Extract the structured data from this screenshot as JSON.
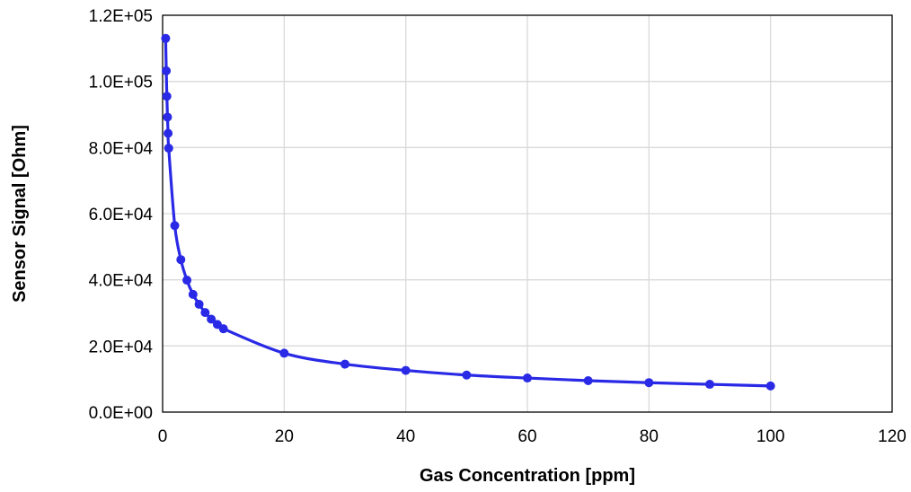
{
  "chart_data": {
    "type": "line",
    "title": "",
    "xlabel": "Gas Concentration [ppm]",
    "ylabel": "Sensor Signal [Ohm]",
    "xlim": [
      0,
      120
    ],
    "ylim": [
      0,
      120000
    ],
    "x_ticks": [
      0,
      20,
      40,
      60,
      80,
      100,
      120
    ],
    "x_tick_labels": [
      "0",
      "20",
      "40",
      "60",
      "80",
      "100",
      "120"
    ],
    "y_ticks": [
      0,
      20000,
      40000,
      60000,
      80000,
      100000,
      120000
    ],
    "y_tick_labels": [
      "0.0E+00",
      "2.0E+04",
      "4.0E+04",
      "6.0E+04",
      "8.0E+04",
      "1.0E+05",
      "1.2E+05"
    ],
    "grid": true,
    "legend": "none",
    "series": [
      {
        "color": "#2929e6",
        "marker": "circle",
        "smooth": true,
        "x": [
          0.5,
          0.6,
          0.7,
          0.8,
          0.9,
          1,
          2,
          3,
          4,
          5,
          6,
          7,
          8,
          9,
          10,
          20,
          30,
          40,
          50,
          60,
          70,
          80,
          90,
          100
        ],
        "y": [
          113000,
          103200,
          95500,
          89200,
          84300,
          79800,
          56400,
          46100,
          39900,
          35600,
          32600,
          30100,
          28100,
          26500,
          25200,
          17800,
          14500,
          12600,
          11200,
          10300,
          9500,
          8900,
          8400,
          7900
        ]
      }
    ]
  }
}
